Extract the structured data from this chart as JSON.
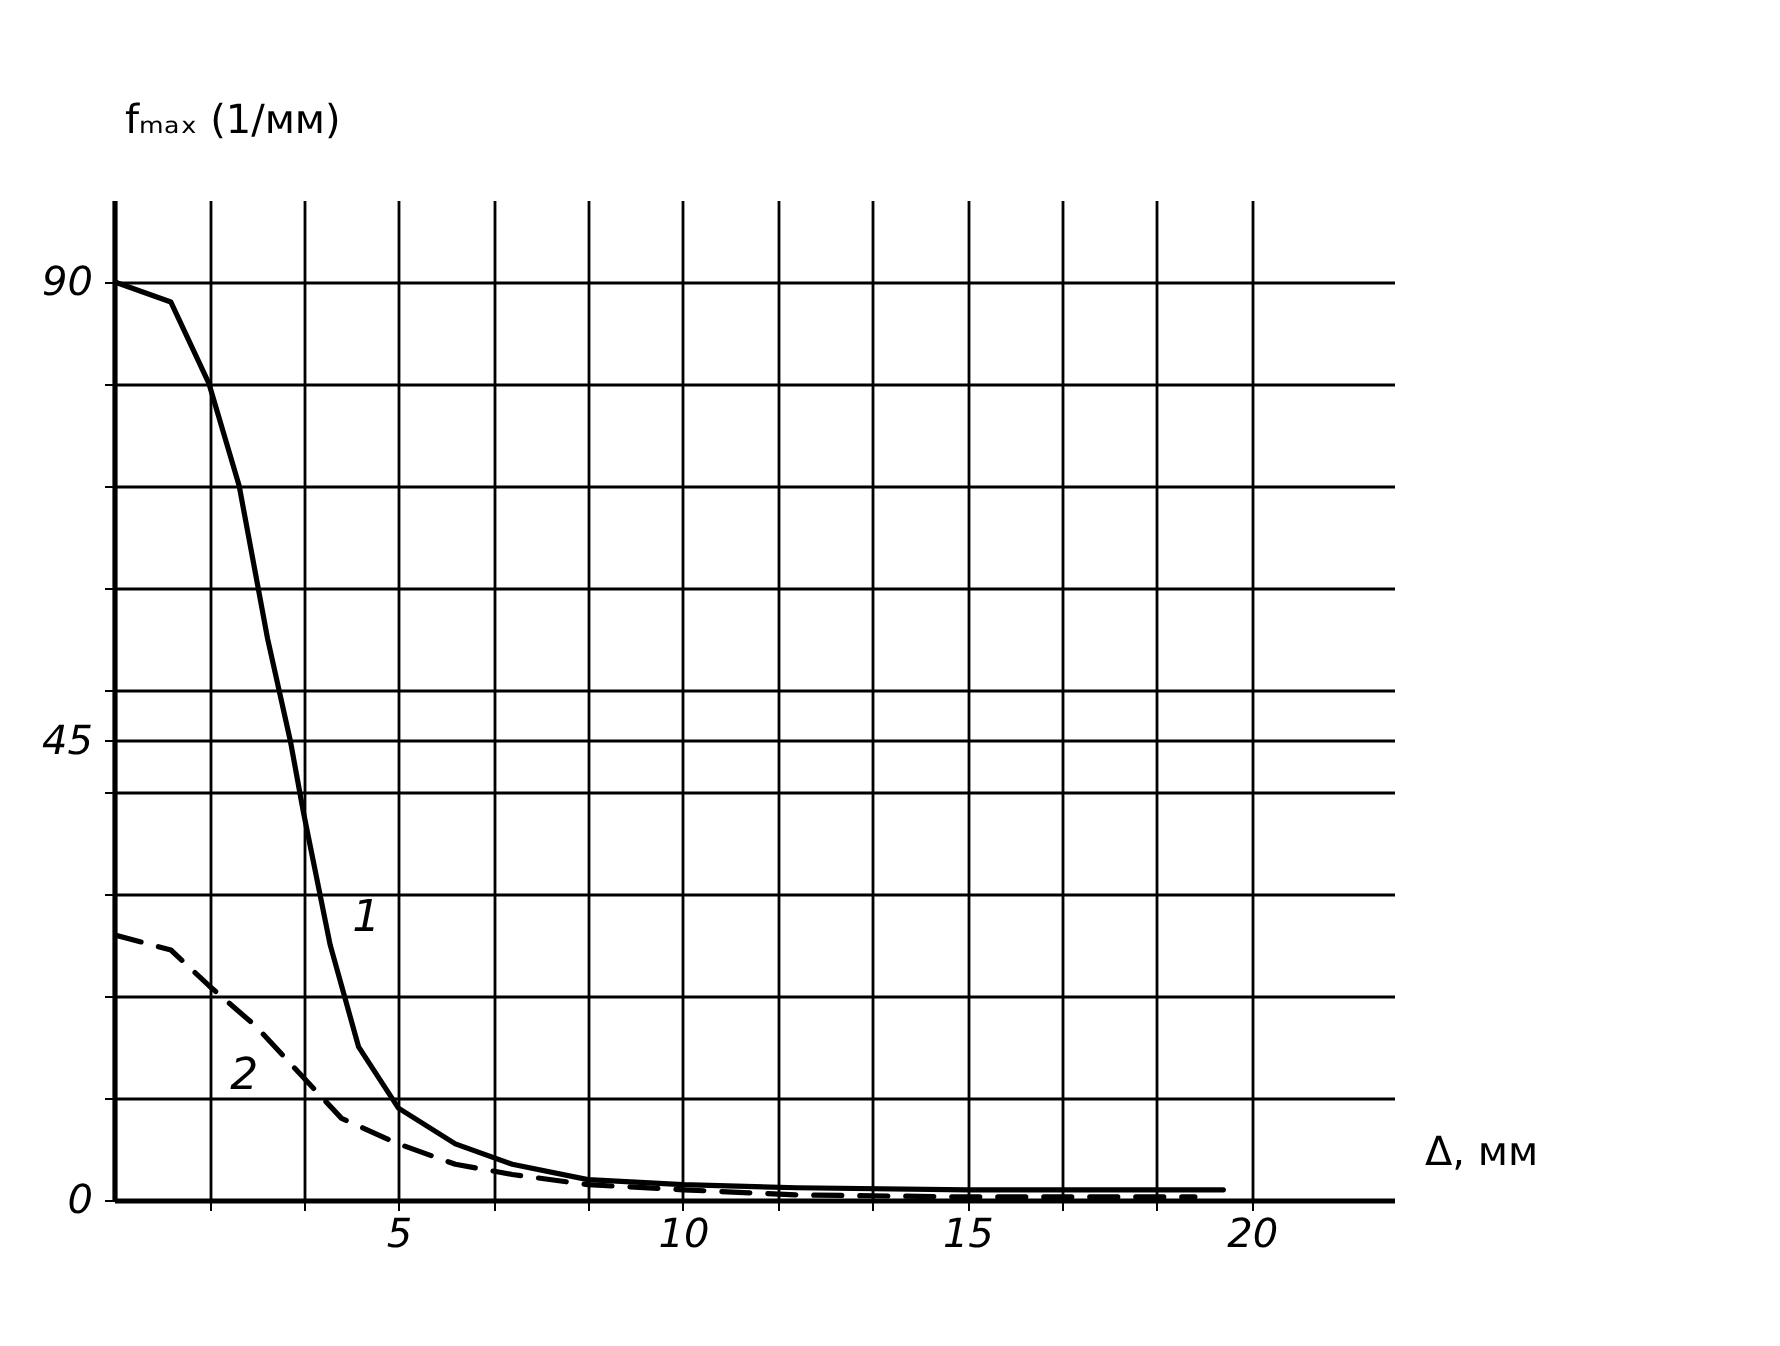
{
  "chart_data": {
    "type": "line",
    "xlabel": "Δ, мм",
    "ylabel": "fₘₐₓ (1/мм)",
    "xlim": [
      0,
      22.5
    ],
    "ylim": [
      0,
      98
    ],
    "xticks": [
      {
        "value": 1.67,
        "label": null
      },
      {
        "value": 3.33,
        "label": null
      },
      5,
      {
        "value": 6.67,
        "label": null
      },
      {
        "value": 8.33,
        "label": null
      },
      10,
      {
        "value": 11.67,
        "label": null
      },
      {
        "value": 13.33,
        "label": null
      },
      15,
      {
        "value": 16.67,
        "label": null
      },
      {
        "value": 18.33,
        "label": null
      },
      20
    ],
    "yticks": [
      0,
      {
        "value": 10,
        "label": null
      },
      {
        "value": 20,
        "label": null
      },
      {
        "value": 30,
        "label": null
      },
      {
        "value": 40,
        "label": null
      },
      45,
      {
        "value": 50,
        "label": null
      },
      {
        "value": 60,
        "label": null
      },
      {
        "value": 70,
        "label": null
      },
      {
        "value": 80,
        "label": null
      },
      90
    ],
    "grid": true,
    "marker": "none",
    "series": [
      {
        "name": "1",
        "color": "#000000",
        "line_style": "solid",
        "x": [
          0,
          1,
          1.67,
          2.2,
          2.7,
          3.1,
          3.33,
          3.8,
          4.3,
          5,
          6,
          7,
          8.33,
          10,
          12,
          15,
          19.5
        ],
        "values": [
          90,
          88,
          80,
          70,
          55,
          45,
          38,
          25,
          15,
          9,
          5.5,
          3.5,
          2,
          1.5,
          1.2,
          1,
          1
        ]
      },
      {
        "name": "2",
        "color": "#000000",
        "line_style": "dashed",
        "x": [
          0,
          1,
          1.67,
          2.5,
          3.33,
          4,
          5,
          6,
          7,
          8.33,
          10,
          12,
          15,
          19
        ],
        "values": [
          26,
          24.5,
          21,
          17,
          12,
          8,
          5.5,
          3.5,
          2.5,
          1.5,
          1,
          0.5,
          0.3,
          0.3
        ]
      }
    ]
  }
}
